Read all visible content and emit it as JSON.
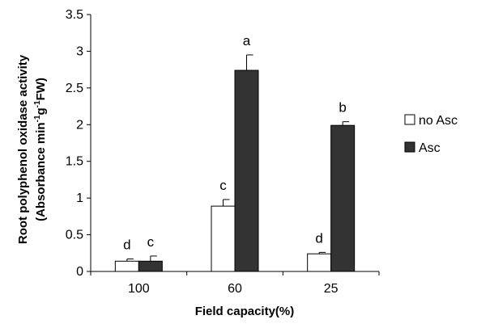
{
  "chart_data": {
    "type": "bar",
    "categories": [
      "100",
      "60",
      "25"
    ],
    "xlabel": "Field capacity(%)",
    "ylabel_line1": "Root polyphenol oxidase activity",
    "ylabel_line2": {
      "prefix": "(Absorbance min",
      "sup1": "-1",
      "mid": "g",
      "sup2": "-1",
      "suffix": "FW)"
    },
    "ylim": [
      0,
      3.5
    ],
    "yticks": [
      0,
      0.5,
      1,
      1.5,
      2,
      2.5,
      3,
      3.5
    ],
    "ytick_labels": [
      "0",
      "0.5",
      "1",
      "1.5",
      "2",
      "2.5",
      "3",
      "3.5"
    ],
    "grid": false,
    "legend_position": "right",
    "series": [
      {
        "name": "no Asc",
        "color": "#ffffff",
        "values": [
          0.14,
          0.89,
          0.24
        ],
        "errors": [
          0.03,
          0.09,
          0.02
        ],
        "letters": [
          "d",
          "c",
          "d"
        ]
      },
      {
        "name": "Asc",
        "color": "#333333",
        "values": [
          0.14,
          2.74,
          1.99
        ],
        "errors": [
          0.07,
          0.21,
          0.05
        ],
        "letters": [
          "c",
          "a",
          "b"
        ]
      }
    ]
  }
}
